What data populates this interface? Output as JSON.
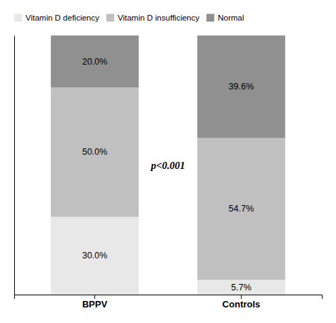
{
  "chart_data": {
    "type": "bar",
    "stacked": true,
    "data_labels": true,
    "categories": [
      "BPPV",
      "Controls"
    ],
    "series": [
      {
        "name": "Vitamin D deficiency",
        "color": "#e8e8e8",
        "values": [
          30.0,
          5.7
        ],
        "value_labels": [
          "30.0%",
          "5.7%"
        ]
      },
      {
        "name": "Vitamin D insufficiency",
        "color": "#c0c0c0",
        "values": [
          50.0,
          54.7
        ],
        "value_labels": [
          "50.0%",
          "54.7%"
        ]
      },
      {
        "name": "Normal",
        "color": "#909090",
        "values": [
          20.0,
          39.6
        ],
        "value_labels": [
          "20.0%",
          "39.6%"
        ]
      }
    ],
    "annotation": "p<0.001",
    "ylim": [
      0,
      100
    ],
    "tick_labels": "x",
    "grid": false,
    "legend": "upper left"
  }
}
